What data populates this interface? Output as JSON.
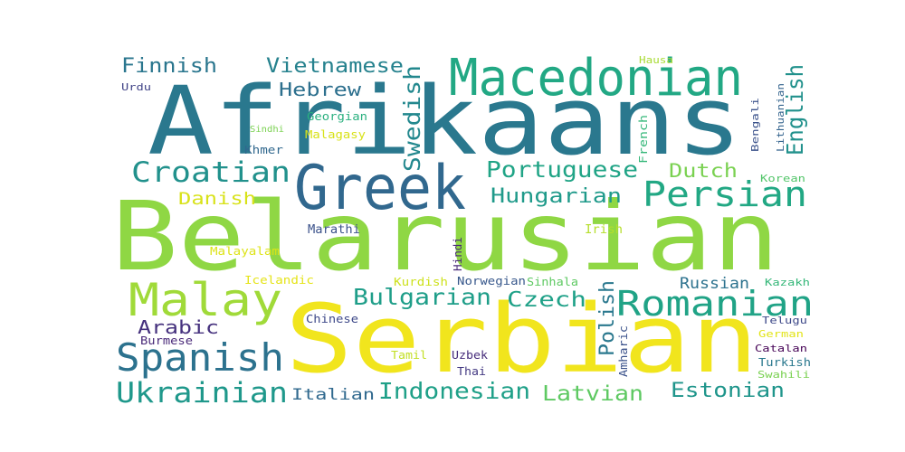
{
  "words": [
    {
      "text": "Belarusian",
      "color": "#8fd744"
    },
    {
      "text": "Afrikaans",
      "color": "#2a788e"
    },
    {
      "text": "Serbian",
      "color": "#f1e51d"
    },
    {
      "text": "Greek",
      "color": "#31688e"
    },
    {
      "text": "Macedonian",
      "color": "#22a884"
    },
    {
      "text": "Malay",
      "color": "#a0da39"
    },
    {
      "text": "Romanian",
      "color": "#20a386"
    },
    {
      "text": "Persian",
      "color": "#22a884"
    },
    {
      "text": "Spanish",
      "color": "#2c728e"
    },
    {
      "text": "Croatian",
      "color": "#21918c"
    },
    {
      "text": "Ukrainian",
      "color": "#1f988b"
    },
    {
      "text": "Indonesian",
      "color": "#1fa088"
    },
    {
      "text": "Portuguese",
      "color": "#20a486"
    },
    {
      "text": "Bulgarian",
      "color": "#1f9e89"
    },
    {
      "text": "Hungarian",
      "color": "#1f9a8a"
    },
    {
      "text": "Swedish",
      "color": "#23888e"
    },
    {
      "text": "English",
      "color": "#21918c"
    },
    {
      "text": "Latvian",
      "color": "#5ec962"
    },
    {
      "text": "Estonian",
      "color": "#1f958b"
    },
    {
      "text": "Czech",
      "color": "#1fa188"
    },
    {
      "text": "Finnish",
      "color": "#2a768e"
    },
    {
      "text": "Vietnamese",
      "color": "#26828e"
    },
    {
      "text": "Dutch",
      "color": "#7ad151"
    },
    {
      "text": "Polish",
      "color": "#2a788e"
    },
    {
      "text": "Hebrew",
      "color": "#2d708e"
    },
    {
      "text": "Arabic",
      "color": "#46327e"
    },
    {
      "text": "Danish",
      "color": "#d8e219"
    },
    {
      "text": "Russian",
      "color": "#2c728e"
    },
    {
      "text": "Italian",
      "color": "#30698e"
    },
    {
      "text": "Marathi",
      "color": "#3b528b"
    },
    {
      "text": "Irish",
      "color": "#b5de2b"
    },
    {
      "text": "Malayalam",
      "color": "#dde318"
    },
    {
      "text": "Kurdish",
      "color": "#cde11d"
    },
    {
      "text": "Norwegian",
      "color": "#38588c"
    },
    {
      "text": "Sinhala",
      "color": "#5ec962"
    },
    {
      "text": "Chinese",
      "color": "#3e4989"
    },
    {
      "text": "Burmese",
      "color": "#482878"
    },
    {
      "text": "Tamil",
      "color": "#c2df23"
    },
    {
      "text": "Uzbek",
      "color": "#472d7b"
    },
    {
      "text": "Thai",
      "color": "#443a83"
    },
    {
      "text": "Amharic",
      "color": "#3b528b"
    },
    {
      "text": "Hindi",
      "color": "#482878"
    },
    {
      "text": "Icelandic",
      "color": "#e5e419"
    },
    {
      "text": "Georgian",
      "color": "#2ab07f"
    },
    {
      "text": "Malagasy",
      "color": "#d8e219"
    },
    {
      "text": "Khmer",
      "color": "#31688e"
    },
    {
      "text": "Sindhi",
      "color": "#7ad151"
    },
    {
      "text": "Urdu",
      "color": "#414487"
    },
    {
      "text": "Hausa",
      "color": "#a8db34"
    },
    {
      "text": "French",
      "color": "#35b779"
    },
    {
      "text": "Bengali",
      "color": "#3b528b"
    },
    {
      "text": "Lithuanian",
      "color": "#33638d"
    },
    {
      "text": "Korean",
      "color": "#52c569"
    },
    {
      "text": "Kazakh",
      "color": "#35b779"
    },
    {
      "text": "Telugu",
      "color": "#3e4989"
    },
    {
      "text": "German",
      "color": "#e2e418"
    },
    {
      "text": "Catalan",
      "color": "#440154"
    },
    {
      "text": "Turkish",
      "color": "#2a788e"
    },
    {
      "text": "Swahili",
      "color": "#7ad151"
    }
  ]
}
